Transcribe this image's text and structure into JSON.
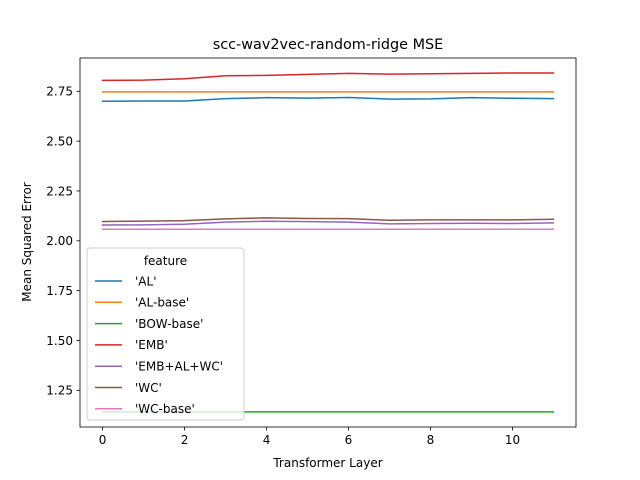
{
  "chart_data": {
    "type": "line",
    "title": "scc-wav2vec-random-ridge MSE",
    "xlabel": "Transformer Layer",
    "ylabel": "Mean Squared Error",
    "xlim": [
      -0.55,
      11.55
    ],
    "ylim": [
      1.066,
      2.917
    ],
    "x_ticks": [
      0,
      2,
      4,
      6,
      8,
      10
    ],
    "y_ticks": [
      1.25,
      1.5,
      1.75,
      2.0,
      2.25,
      2.5,
      2.75
    ],
    "y_tick_labels": [
      "1.25",
      "1.50",
      "1.75",
      "2.00",
      "2.25",
      "2.50",
      "2.75"
    ],
    "grid": false,
    "legend": {
      "title": "feature",
      "placement": "lower-left"
    },
    "x": [
      0,
      1,
      2,
      3,
      4,
      5,
      6,
      7,
      8,
      9,
      10,
      11
    ],
    "series": [
      {
        "name": "'AL'",
        "color": "#1f77b4",
        "values": [
          2.7,
          2.701,
          2.701,
          2.713,
          2.718,
          2.716,
          2.719,
          2.711,
          2.712,
          2.718,
          2.715,
          2.713
        ]
      },
      {
        "name": "'AL-base'",
        "color": "#ff7f0e",
        "values": [
          2.747,
          2.747,
          2.747,
          2.747,
          2.747,
          2.747,
          2.747,
          2.747,
          2.747,
          2.747,
          2.747,
          2.747
        ]
      },
      {
        "name": "'BOW-base'",
        "color": "#2ca02c",
        "values": [
          1.142,
          1.142,
          1.142,
          1.142,
          1.142,
          1.142,
          1.142,
          1.142,
          1.142,
          1.142,
          1.142,
          1.142
        ]
      },
      {
        "name": "'EMB'",
        "color": "#d62728",
        "values": [
          2.805,
          2.806,
          2.813,
          2.828,
          2.83,
          2.835,
          2.84,
          2.836,
          2.838,
          2.84,
          2.842,
          2.842
        ]
      },
      {
        "name": "'EMB+AL+WC'",
        "color": "#9467bd",
        "values": [
          2.079,
          2.08,
          2.083,
          2.094,
          2.098,
          2.096,
          2.094,
          2.085,
          2.087,
          2.088,
          2.087,
          2.09
        ]
      },
      {
        "name": "'WC'",
        "color": "#8c564b",
        "values": [
          2.097,
          2.099,
          2.101,
          2.11,
          2.115,
          2.112,
          2.111,
          2.103,
          2.105,
          2.105,
          2.105,
          2.108
        ]
      },
      {
        "name": "'WC-base'",
        "color": "#e377c2",
        "values": [
          2.058,
          2.058,
          2.058,
          2.058,
          2.058,
          2.058,
          2.058,
          2.058,
          2.058,
          2.058,
          2.058,
          2.058
        ]
      }
    ]
  }
}
